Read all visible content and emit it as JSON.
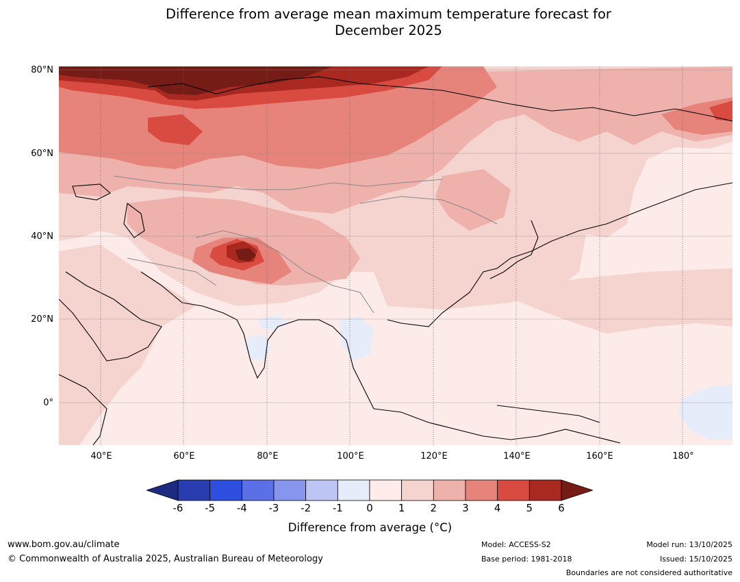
{
  "title_lines": [
    "Difference from average mean maximum temperature forecast for",
    "December 2025"
  ],
  "map": {
    "latitude_labels": [
      "80°N",
      "60°N",
      "40°N",
      "20°N",
      "0°"
    ],
    "longitude_labels": [
      "40°E",
      "60°E",
      "80°E",
      "100°E",
      "120°E",
      "140°E",
      "160°E",
      "180°"
    ],
    "lat_range": [
      -10,
      80
    ],
    "lon_range": [
      30,
      192
    ]
  },
  "colorbar": {
    "ticks": [
      "-6",
      "-5",
      "-4",
      "-3",
      "-2",
      "-1",
      "0",
      "1",
      "2",
      "3",
      "4",
      "5",
      "6"
    ],
    "colors": [
      "#2a3db0",
      "#2e4ee0",
      "#5b70e6",
      "#8796ec",
      "#bcc5f3",
      "#e7ecfb",
      "#fdecea",
      "#f5d3cf",
      "#eeb1ab",
      "#e6837b",
      "#d94a40",
      "#a92921"
    ],
    "under_color": "#1c2a80",
    "over_color": "#761c17",
    "label": "Difference from average (°C)"
  },
  "footer": {
    "website": "www.bom.gov.au/climate",
    "copyright": "© Commonwealth of Australia 2025, Australian Bureau of Meteorology",
    "model": "Model: ACCESS-S2",
    "base_period": "Base period: 1981-2018",
    "model_run": "Model run: 13/10/2025",
    "issued": "Issued: 15/10/2025",
    "disclaimer": "Boundaries are not considered authoritative"
  }
}
